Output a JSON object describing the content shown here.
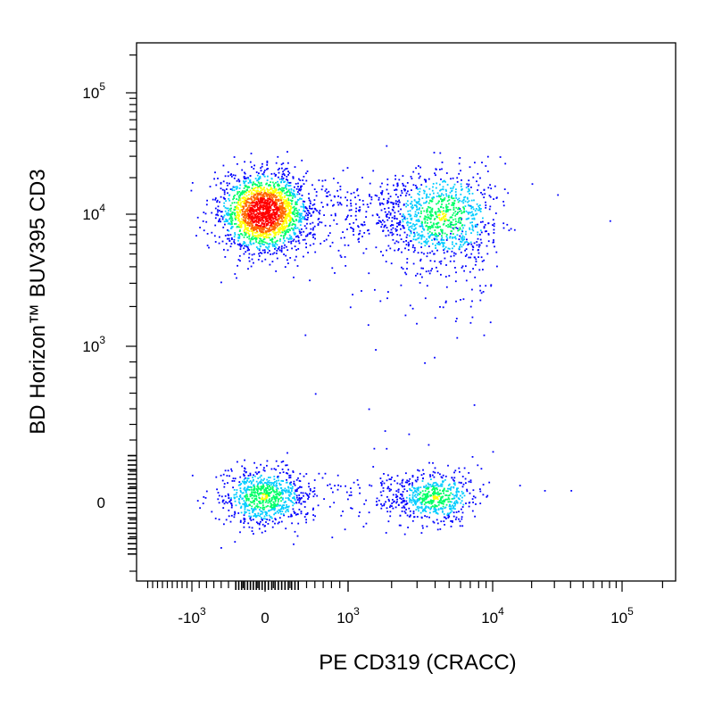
{
  "chart_data": {
    "type": "scatter",
    "title": "",
    "xlabel": "PE  CD319 (CRACC)",
    "ylabel": "BD Horizon™ BUV395  CD3",
    "x_scale": "biexponential",
    "y_scale": "biexponential",
    "x_ticks": [
      {
        "value": -1000,
        "base": "-10",
        "exp": "3"
      },
      {
        "value": 0,
        "base": "0",
        "exp": ""
      },
      {
        "value": 1000,
        "base": "10",
        "exp": "3"
      },
      {
        "value": 10000,
        "base": "10",
        "exp": "4"
      },
      {
        "value": 100000,
        "base": "10",
        "exp": "5"
      }
    ],
    "y_ticks": [
      {
        "value": 0,
        "base": "0",
        "exp": ""
      },
      {
        "value": 1000,
        "base": "10",
        "exp": "3"
      },
      {
        "value": 10000,
        "base": "10",
        "exp": "4"
      },
      {
        "value": 100000,
        "base": "10",
        "exp": "5"
      }
    ],
    "xlim": [
      -2000,
      250000
    ],
    "ylim": [
      -400,
      250000
    ],
    "colormap": [
      "#0000ff",
      "#00ccff",
      "#00ff66",
      "#ffff00",
      "#ff6600",
      "#ff0000"
    ],
    "populations": [
      {
        "x_center": -30,
        "y_center": 10500,
        "count": 2300,
        "density": "high"
      },
      {
        "x_center": 4500,
        "y_center": 9800,
        "count": 900,
        "density": "medium"
      },
      {
        "x_center": -30,
        "y_center": 40,
        "count": 900,
        "density": "medium"
      },
      {
        "x_center": 4000,
        "y_center": 40,
        "count": 600,
        "density": "medium"
      }
    ]
  }
}
